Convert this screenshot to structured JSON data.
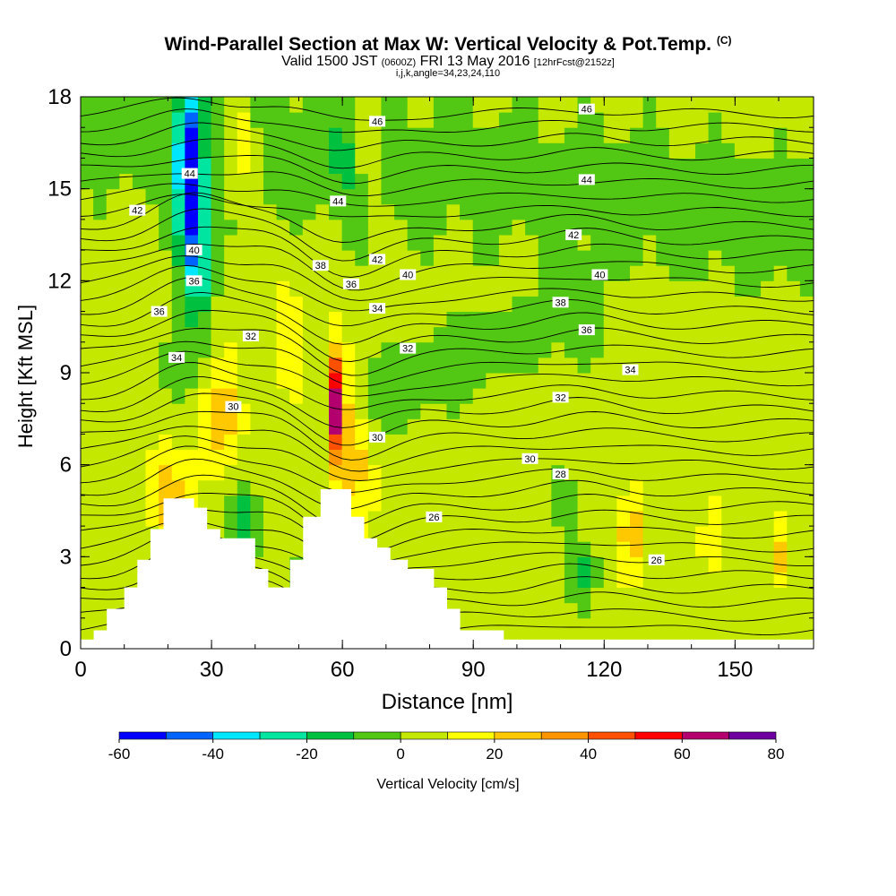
{
  "header": {
    "title": "Wind-Parallel Section at Max W: Vertical Velocity & Pot.Temp.",
    "title_mark": "(C)",
    "valid_pre": "Valid 1500 JST",
    "valid_z": "(0600Z)",
    "valid_date": "FRI 13 May 2016",
    "fcst": "[12hrFcst@2152z]",
    "subline": "i,j,k,angle=34,23,24,110"
  },
  "chart_data": {
    "type": "heatmap",
    "xlabel": "Distance [nm]",
    "ylabel": "Height [Kft MSL]",
    "xlim": [
      0,
      168
    ],
    "ylim": [
      0,
      18
    ],
    "x_ticks": [
      "0",
      "30",
      "60",
      "90",
      "120",
      "150"
    ],
    "y_ticks": [
      "0",
      "3",
      "6",
      "9",
      "12",
      "15",
      "18"
    ],
    "colorbar": {
      "label": "Vertical Velocity [cm/s]",
      "ticks": [
        "-60",
        "-40",
        "-20",
        "0",
        "20",
        "40",
        "60",
        "80"
      ],
      "levels": [
        -60,
        -50,
        -40,
        -30,
        -20,
        -10,
        0,
        10,
        20,
        30,
        40,
        50,
        60,
        70,
        80
      ],
      "colors": [
        "#0000ff",
        "#0064ff",
        "#00e6ff",
        "#00e6a0",
        "#00c040",
        "#52c814",
        "#c4e800",
        "#ffff00",
        "#ffc800",
        "#ff9600",
        "#ff5000",
        "#ff0000",
        "#b4006e",
        "#6e00a0"
      ]
    },
    "terrain_profile": [
      [
        0,
        0.3
      ],
      [
        3,
        0.3
      ],
      [
        3,
        0.6
      ],
      [
        6,
        0.6
      ],
      [
        6,
        1.3
      ],
      [
        10,
        1.3
      ],
      [
        10,
        2
      ],
      [
        13,
        2
      ],
      [
        13,
        2.9
      ],
      [
        16,
        2.9
      ],
      [
        16,
        3.9
      ],
      [
        19,
        3.9
      ],
      [
        19,
        4.9
      ],
      [
        26,
        4.9
      ],
      [
        26,
        4.6
      ],
      [
        29,
        4.6
      ],
      [
        29,
        3.9
      ],
      [
        32,
        3.9
      ],
      [
        32,
        3.6
      ],
      [
        40,
        3.6
      ],
      [
        40,
        2.6
      ],
      [
        43,
        2.6
      ],
      [
        43,
        2
      ],
      [
        48,
        2
      ],
      [
        48,
        2.9
      ],
      [
        51,
        2.9
      ],
      [
        51,
        4.3
      ],
      [
        55,
        4.3
      ],
      [
        55,
        5.2
      ],
      [
        62,
        5.2
      ],
      [
        62,
        4.3
      ],
      [
        65,
        4.3
      ],
      [
        65,
        3.6
      ],
      [
        68,
        3.6
      ],
      [
        68,
        3.3
      ],
      [
        71,
        3.3
      ],
      [
        71,
        2.9
      ],
      [
        75,
        2.9
      ],
      [
        75,
        2.6
      ],
      [
        81,
        2.6
      ],
      [
        81,
        2
      ],
      [
        84,
        2
      ],
      [
        84,
        1.3
      ],
      [
        87,
        1.3
      ],
      [
        87,
        0.6
      ],
      [
        97,
        0.6
      ],
      [
        97,
        0.3
      ],
      [
        168,
        0.3
      ]
    ],
    "theta_labels": [
      {
        "text": "46",
        "x": 68,
        "y": 17.2
      },
      {
        "text": "46",
        "x": 116,
        "y": 17.6
      },
      {
        "text": "44",
        "x": 25,
        "y": 15.5
      },
      {
        "text": "44",
        "x": 59,
        "y": 14.6
      },
      {
        "text": "44",
        "x": 116,
        "y": 15.3
      },
      {
        "text": "42",
        "x": 13,
        "y": 14.3
      },
      {
        "text": "42",
        "x": 68,
        "y": 12.7
      },
      {
        "text": "42",
        "x": 113,
        "y": 13.5
      },
      {
        "text": "40",
        "x": 26,
        "y": 13
      },
      {
        "text": "40",
        "x": 75,
        "y": 12.2
      },
      {
        "text": "40",
        "x": 119,
        "y": 12.2
      },
      {
        "text": "38",
        "x": 55,
        "y": 12.5
      },
      {
        "text": "38",
        "x": 110,
        "y": 11.3
      },
      {
        "text": "36",
        "x": 26,
        "y": 12
      },
      {
        "text": "36",
        "x": 62,
        "y": 11.9
      },
      {
        "text": "36",
        "x": 18,
        "y": 11
      },
      {
        "text": "36",
        "x": 116,
        "y": 10.4
      },
      {
        "text": "34",
        "x": 22,
        "y": 9.5
      },
      {
        "text": "34",
        "x": 68,
        "y": 11.1
      },
      {
        "text": "34",
        "x": 126,
        "y": 9.1
      },
      {
        "text": "32",
        "x": 39,
        "y": 10.2
      },
      {
        "text": "32",
        "x": 75,
        "y": 9.8
      },
      {
        "text": "32",
        "x": 110,
        "y": 8.2
      },
      {
        "text": "30",
        "x": 35,
        "y": 7.9
      },
      {
        "text": "30",
        "x": 68,
        "y": 6.9
      },
      {
        "text": "30",
        "x": 103,
        "y": 6.2
      },
      {
        "text": "28",
        "x": 110,
        "y": 5.7
      },
      {
        "text": "26",
        "x": 81,
        "y": 4.3
      },
      {
        "text": "26",
        "x": 132,
        "y": 2.9
      }
    ]
  }
}
